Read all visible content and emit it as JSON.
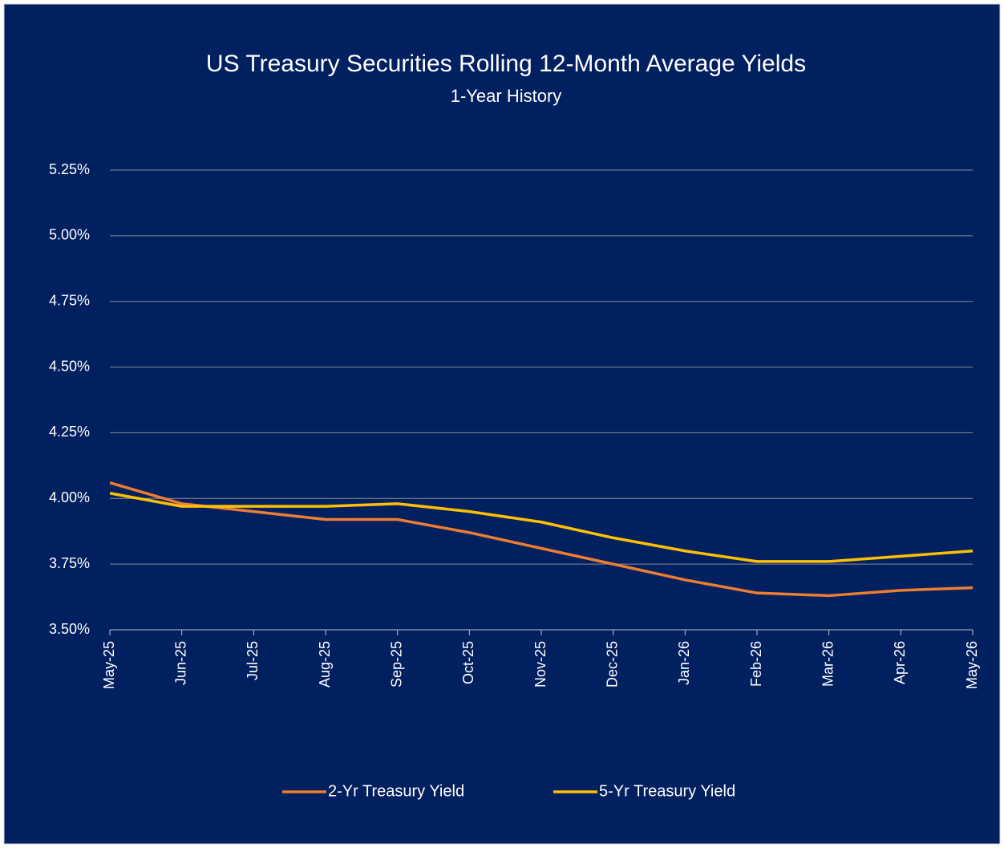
{
  "chart_data": {
    "type": "line",
    "title": "US Treasury Securities Rolling 12-Month Average Yields",
    "subtitle": "1-Year History",
    "categories": [
      "May-25",
      "Jun-25",
      "Jul-25",
      "Aug-25",
      "Sep-25",
      "Oct-25",
      "Nov-25",
      "Dec-25",
      "Jan-26",
      "Feb-26",
      "Mar-26",
      "Apr-26",
      "May-26"
    ],
    "series": [
      {
        "name": "2-Yr Treasury Yield",
        "color": "#ED7D31",
        "values": [
          4.06,
          3.98,
          3.95,
          3.92,
          3.92,
          3.87,
          3.81,
          3.75,
          3.69,
          3.64,
          3.63,
          3.65,
          3.66
        ]
      },
      {
        "name": "5-Yr Treasury Yield",
        "color": "#FFC000",
        "values": [
          4.02,
          3.97,
          3.97,
          3.97,
          3.98,
          3.95,
          3.91,
          3.85,
          3.8,
          3.76,
          3.76,
          3.78,
          3.8
        ]
      }
    ],
    "ylim": [
      3.5,
      5.25
    ],
    "yticks": [
      {
        "value": 3.5,
        "label": "3.50%"
      },
      {
        "value": 3.75,
        "label": "3.75%"
      },
      {
        "value": 4.0,
        "label": "4.00%"
      },
      {
        "value": 4.25,
        "label": "4.25%"
      },
      {
        "value": 4.5,
        "label": "4.50%"
      },
      {
        "value": 4.75,
        "label": "4.75%"
      },
      {
        "value": 5.0,
        "label": "5.00%"
      },
      {
        "value": 5.25,
        "label": "5.25%"
      }
    ],
    "grid": true,
    "legend": "bottom"
  }
}
